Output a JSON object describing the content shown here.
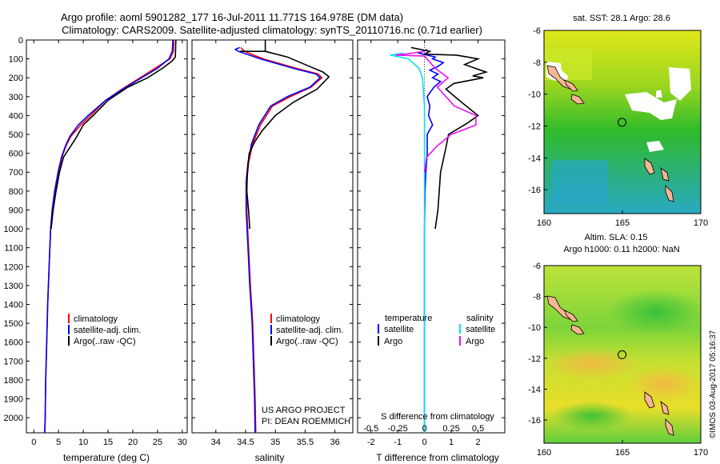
{
  "header": {
    "line1": "Argo profile: aoml 5901282_177 16-Jul-2011 11.771S 164.978E (DM data)",
    "line2": "Climatology: CARS2009. Satellite-adjusted climatology: synTS_20110716.nc (0.71d earlier)"
  },
  "footer": {
    "project": "US ARGO PROJECT",
    "pi": "PI: DEAN ROEMMICH",
    "imos": "©IMOS 03-Aug-2017 05:16:37"
  },
  "colors": {
    "climatology": "#ff0000",
    "satellite": "#0000ff",
    "argo": "#000000",
    "temp_sat_diff": "#0000ff",
    "temp_argo_diff": "#000000",
    "sal_sat_diff": "#00e5ee",
    "sal_argo_diff": "#ee11ee",
    "land": "#f5b693"
  },
  "chart_data": [
    {
      "type": "line",
      "id": "temperature",
      "xlabel": "temperature (deg C)",
      "ylabel": "",
      "xlim": [
        -1.5,
        31
      ],
      "ylim": [
        2080,
        0
      ],
      "xticks": [
        "0",
        "5",
        "10",
        "15",
        "20",
        "25",
        "30"
      ],
      "yticks": [
        "0",
        "100",
        "200",
        "300",
        "400",
        "500",
        "600",
        "700",
        "800",
        "900",
        "1000",
        "1100",
        "1200",
        "1300",
        "1400",
        "1500",
        "1600",
        "1700",
        "1800",
        "1900",
        "2000"
      ],
      "legend": {
        "position": "bottom-left",
        "entries": [
          "climatology",
          "satellite-adj. clim.",
          "Argo(..raw -QC)"
        ]
      },
      "series": [
        {
          "name": "climatology",
          "color": "#ff0000",
          "points": [
            [
              28.3,
              0
            ],
            [
              28.2,
              60
            ],
            [
              27.5,
              100
            ],
            [
              24.5,
              150
            ],
            [
              21.5,
              200
            ],
            [
              17.8,
              260
            ],
            [
              14.5,
              320
            ],
            [
              11.5,
              400
            ],
            [
              9.5,
              450
            ],
            [
              7.5,
              510
            ],
            [
              6.5,
              560
            ],
            [
              5.7,
              620
            ],
            [
              5.0,
              700
            ],
            [
              4.3,
              800
            ],
            [
              3.8,
              900
            ],
            [
              3.4,
              1000
            ],
            [
              3.1,
              1200
            ],
            [
              2.8,
              1400
            ],
            [
              2.6,
              1600
            ],
            [
              2.4,
              1800
            ],
            [
              2.3,
              2000
            ],
            [
              2.2,
              2080
            ]
          ]
        },
        {
          "name": "satellite-adj. clim.",
          "color": "#0000ff",
          "points": [
            [
              28.1,
              0
            ],
            [
              28.0,
              60
            ],
            [
              27.3,
              100
            ],
            [
              25.0,
              150
            ],
            [
              21.8,
              200
            ],
            [
              18.0,
              260
            ],
            [
              14.5,
              320
            ],
            [
              11.0,
              400
            ],
            [
              9.0,
              450
            ],
            [
              7.3,
              510
            ],
            [
              6.4,
              560
            ],
            [
              5.6,
              620
            ],
            [
              4.9,
              700
            ],
            [
              4.2,
              800
            ],
            [
              3.7,
              900
            ],
            [
              3.4,
              1000
            ],
            [
              3.1,
              1200
            ],
            [
              2.8,
              1400
            ],
            [
              2.6,
              1600
            ],
            [
              2.4,
              1800
            ],
            [
              2.3,
              2000
            ],
            [
              2.2,
              2080
            ]
          ]
        },
        {
          "name": "Argo(..raw -QC)",
          "color": "#000000",
          "points": [
            [
              28.7,
              0
            ],
            [
              28.6,
              90
            ],
            [
              28.0,
              110
            ],
            [
              26.0,
              150
            ],
            [
              23.0,
              200
            ],
            [
              19.0,
              250
            ],
            [
              15.0,
              320
            ],
            [
              12.0,
              400
            ],
            [
              10.0,
              450
            ],
            [
              8.5,
              520
            ],
            [
              7.5,
              560
            ],
            [
              6.0,
              620
            ],
            [
              5.2,
              700
            ],
            [
              4.5,
              800
            ],
            [
              3.9,
              900
            ],
            [
              3.5,
              1000
            ]
          ]
        }
      ]
    },
    {
      "type": "line",
      "id": "salinity",
      "xlabel": "salinity",
      "xlim": [
        33.6,
        36.3
      ],
      "ylim": [
        2080,
        0
      ],
      "xticks": [
        "34",
        "34.5",
        "35",
        "35.5",
        "36"
      ],
      "legend": {
        "position": "bottom-right",
        "entries": [
          "climatology",
          "satellite-adj. clim.",
          "Argo(..raw -QC)"
        ]
      },
      "series": [
        {
          "name": "climatology",
          "color": "#ff0000",
          "points": [
            [
              34.42,
              40
            ],
            [
              34.48,
              60
            ],
            [
              34.8,
              100
            ],
            [
              35.35,
              150
            ],
            [
              35.72,
              180
            ],
            [
              35.78,
              200
            ],
            [
              35.6,
              250
            ],
            [
              35.25,
              300
            ],
            [
              34.95,
              350
            ],
            [
              34.75,
              450
            ],
            [
              34.62,
              550
            ],
            [
              34.55,
              650
            ],
            [
              34.52,
              750
            ],
            [
              34.52,
              900
            ],
            [
              34.55,
              1100
            ],
            [
              34.58,
              1300
            ],
            [
              34.62,
              1500
            ],
            [
              34.64,
              1700
            ],
            [
              34.66,
              1900
            ],
            [
              34.67,
              2080
            ]
          ]
        },
        {
          "name": "satellite-adj. clim.",
          "color": "#0000ff",
          "points": [
            [
              34.4,
              40
            ],
            [
              34.33,
              50
            ],
            [
              34.38,
              60
            ],
            [
              34.75,
              100
            ],
            [
              35.3,
              150
            ],
            [
              35.68,
              180
            ],
            [
              35.75,
              200
            ],
            [
              35.58,
              250
            ],
            [
              35.2,
              300
            ],
            [
              34.92,
              350
            ],
            [
              34.72,
              450
            ],
            [
              34.6,
              550
            ],
            [
              34.54,
              650
            ],
            [
              34.51,
              750
            ],
            [
              34.51,
              900
            ],
            [
              34.54,
              1100
            ],
            [
              34.57,
              1300
            ],
            [
              34.61,
              1500
            ],
            [
              34.63,
              1700
            ],
            [
              34.65,
              1900
            ],
            [
              34.66,
              2080
            ]
          ]
        },
        {
          "name": "Argo(..raw -QC)",
          "color": "#000000",
          "points": [
            [
              34.4,
              60
            ],
            [
              34.83,
              60
            ],
            [
              34.83,
              0
            ],
            [
              34.83,
              60
            ],
            [
              35.2,
              90
            ],
            [
              35.5,
              130
            ],
            [
              35.8,
              170
            ],
            [
              35.9,
              195
            ],
            [
              35.7,
              260
            ],
            [
              35.3,
              330
            ],
            [
              35.0,
              400
            ],
            [
              34.78,
              480
            ],
            [
              34.65,
              540
            ],
            [
              34.56,
              600
            ],
            [
              34.53,
              700
            ],
            [
              34.52,
              800
            ],
            [
              34.55,
              900
            ],
            [
              34.57,
              1000
            ]
          ]
        }
      ]
    },
    {
      "type": "line",
      "id": "difference",
      "xlabel": "T difference from climatology",
      "xlabel_top": "S difference from climatology",
      "xlim": [
        -2.5,
        3
      ],
      "ylim": [
        2080,
        0
      ],
      "xticks": [
        "-2",
        "-1",
        "0",
        "1",
        "2"
      ],
      "xticks_top": [
        "-0.5",
        "-0.25",
        "0",
        "0.25",
        "0.5"
      ],
      "legend": {
        "position": "bottom-center",
        "temperature_title": "temperature",
        "salinity_title": "salinity",
        "entries": [
          "satellite",
          "Argo",
          "satellite",
          "Argo"
        ]
      },
      "series": [
        {
          "name": "temperature satellite",
          "color": "#0000ff",
          "points": [
            [
              0.1,
              50
            ],
            [
              -0.2,
              70
            ],
            [
              0.1,
              80
            ],
            [
              0.4,
              90
            ],
            [
              0.3,
              100
            ],
            [
              0.7,
              120
            ],
            [
              0.5,
              140
            ],
            [
              0.2,
              160
            ],
            [
              0.5,
              180
            ],
            [
              0.3,
              200
            ],
            [
              0.6,
              220
            ],
            [
              0.35,
              250
            ],
            [
              0.1,
              300
            ],
            [
              0.2,
              350
            ],
            [
              0.15,
              400
            ],
            [
              0.3,
              450
            ],
            [
              0.1,
              500
            ],
            [
              0.1,
              600
            ],
            [
              0.05,
              700
            ],
            [
              0.02,
              800
            ],
            [
              0.0,
              1000
            ],
            [
              0.0,
              2080
            ]
          ]
        },
        {
          "name": "temperature Argo",
          "color": "#000000",
          "points": [
            [
              -0.5,
              40
            ],
            [
              0.2,
              60
            ],
            [
              0.0,
              75
            ],
            [
              1.2,
              80
            ],
            [
              2.0,
              100
            ],
            [
              1.5,
              130
            ],
            [
              2.3,
              170
            ],
            [
              1.8,
              190
            ],
            [
              2.2,
              200
            ],
            [
              1.1,
              230
            ],
            [
              0.8,
              260
            ],
            [
              1.3,
              320
            ],
            [
              2.0,
              400
            ],
            [
              1.6,
              440
            ],
            [
              0.9,
              500
            ],
            [
              0.8,
              570
            ],
            [
              0.6,
              700
            ],
            [
              0.5,
              900
            ],
            [
              0.4,
              1000
            ]
          ]
        },
        {
          "name": "salinity satellite",
          "color": "#00e5ee",
          "points": [
            [
              -0.2,
              70
            ],
            [
              -0.32,
              80
            ],
            [
              -0.15,
              100
            ],
            [
              -0.05,
              150
            ],
            [
              -0.02,
              200
            ],
            [
              0.0,
              350
            ],
            [
              0.0,
              2080
            ]
          ]
        },
        {
          "name": "salinity Argo",
          "color": "#ee11ee",
          "points": [
            [
              0.0,
              60
            ],
            [
              -0.12,
              70
            ],
            [
              -0.27,
              80
            ],
            [
              0.0,
              85
            ],
            [
              0.1,
              150
            ],
            [
              0.22,
              200
            ],
            [
              0.12,
              250
            ],
            [
              0.2,
              300
            ],
            [
              0.28,
              350
            ],
            [
              0.48,
              400
            ],
            [
              0.48,
              450
            ],
            [
              0.25,
              500
            ],
            [
              0.12,
              560
            ],
            [
              0.02,
              620
            ],
            [
              0.0,
              700
            ]
          ]
        }
      ]
    },
    {
      "type": "heatmap",
      "id": "sst_map",
      "title": "sat. SST: 28.1  Argo: 28.6",
      "xlim": [
        160,
        170
      ],
      "ylim": [
        -17.5,
        -6
      ],
      "xticks": [
        "160",
        "165",
        "170"
      ],
      "yticks": [
        "-6",
        "-8",
        "-10",
        "-12",
        "-14",
        "-16"
      ],
      "float_position": [
        164.978,
        -11.771
      ]
    },
    {
      "type": "heatmap",
      "id": "sla_map",
      "title1": "Altim. SLA: 0.15",
      "title2": "Argo h1000: 0.11 h2000: NaN",
      "xlim": [
        160,
        170
      ],
      "ylim": [
        -17.5,
        -6
      ],
      "xticks": [
        "160",
        "165",
        "170"
      ],
      "yticks": [
        "-6",
        "-8",
        "-10",
        "-12",
        "-14",
        "-16"
      ],
      "float_position": [
        164.978,
        -11.771
      ]
    }
  ]
}
